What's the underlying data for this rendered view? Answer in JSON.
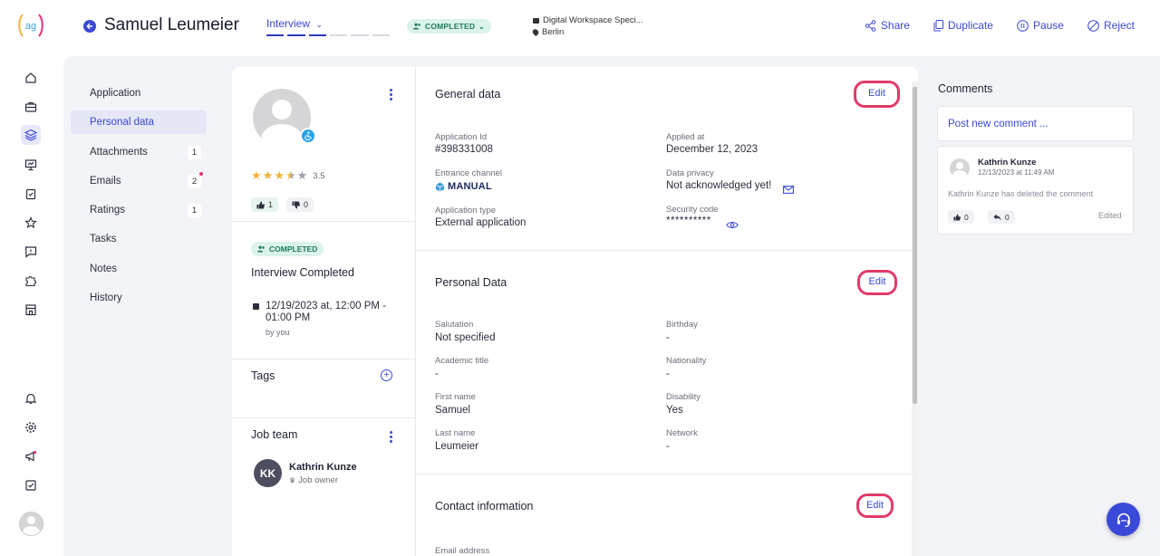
{
  "header": {
    "candidate_name": "Samuel Leumeier",
    "stage_label": "Interview",
    "status": "COMPLETED",
    "job_title": "Digital Workspace Speci...",
    "location": "Berlin",
    "actions": {
      "share": "Share",
      "duplicate": "Duplicate",
      "pause": "Pause",
      "reject": "Reject"
    },
    "stage_progress": 3,
    "stage_total": 6
  },
  "rail": {
    "icons": [
      "home-icon",
      "briefcase-icon",
      "layers-icon",
      "presentation-icon",
      "clipboard-check-icon",
      "star-icon",
      "chat-icon",
      "puzzle-icon",
      "store-icon"
    ],
    "bottom_icons": [
      "bell-icon",
      "settings-icon",
      "megaphone-icon",
      "checkbox-icon",
      "user-avatar"
    ]
  },
  "nav": {
    "items": [
      {
        "label": "Application",
        "badge": ""
      },
      {
        "label": "Personal data",
        "badge": ""
      },
      {
        "label": "Attachments",
        "badge": "1"
      },
      {
        "label": "Emails",
        "badge": "2"
      },
      {
        "label": "Ratings",
        "badge": "1"
      },
      {
        "label": "Tasks",
        "badge": ""
      },
      {
        "label": "Notes",
        "badge": ""
      },
      {
        "label": "History",
        "badge": ""
      }
    ]
  },
  "profile": {
    "rating": "3.5",
    "upvotes": "1",
    "downvotes": "0",
    "status_chip": "COMPLETED",
    "status_title": "Interview Completed",
    "interview_time": "12/19/2023 at, 12:00 PM - 01:00 PM",
    "interview_by": "by you",
    "tags_title": "Tags",
    "job_team_title": "Job team",
    "team_member": {
      "initials": "KK",
      "name": "Kathrin Kunze",
      "role": "Job owner"
    }
  },
  "general": {
    "title": "General data",
    "edit_label": "Edit",
    "application_id_label": "Application Id",
    "application_id": "#398331008",
    "applied_at_label": "Applied at",
    "applied_at": "December 12, 2023",
    "entrance_channel_label": "Entrance channel",
    "entrance_channel": "MANUAL",
    "data_privacy_label": "Data privacy",
    "data_privacy": "Not acknowledged yet!",
    "application_type_label": "Application type",
    "application_type": "External application",
    "security_code_label": "Security code",
    "security_code": "**********"
  },
  "personal": {
    "title": "Personal Data",
    "edit_label": "Edit",
    "salutation_label": "Salutation",
    "salutation": "Not specified",
    "birthday_label": "Birthday",
    "birthday": "-",
    "academic_title_label": "Academic title",
    "academic_title": "-",
    "nationality_label": "Nationality",
    "nationality": "-",
    "first_name_label": "First name",
    "first_name": "Samuel",
    "disability_label": "Disability",
    "disability": "Yes",
    "last_name_label": "Last name",
    "last_name": "Leumeier",
    "network_label": "Network",
    "network": "-"
  },
  "contact": {
    "title": "Contact information",
    "edit_label": "Edit",
    "email_label": "Email address"
  },
  "comments": {
    "title": "Comments",
    "placeholder": "Post new comment ...",
    "items": [
      {
        "author": "Kathrin Kunze",
        "timestamp": "12/13/2023 at 11:49 AM",
        "text": "Kathrin Kunze has deleted the comment",
        "likes": "0",
        "replies": "0",
        "edited_label": "Edited"
      }
    ]
  },
  "colors": {
    "accent": "#3a49d8",
    "highlight_border": "#e23a6a",
    "status_bg": "#dbf3ea",
    "status_text": "#1e7a5a",
    "star": "#f0b43c"
  }
}
